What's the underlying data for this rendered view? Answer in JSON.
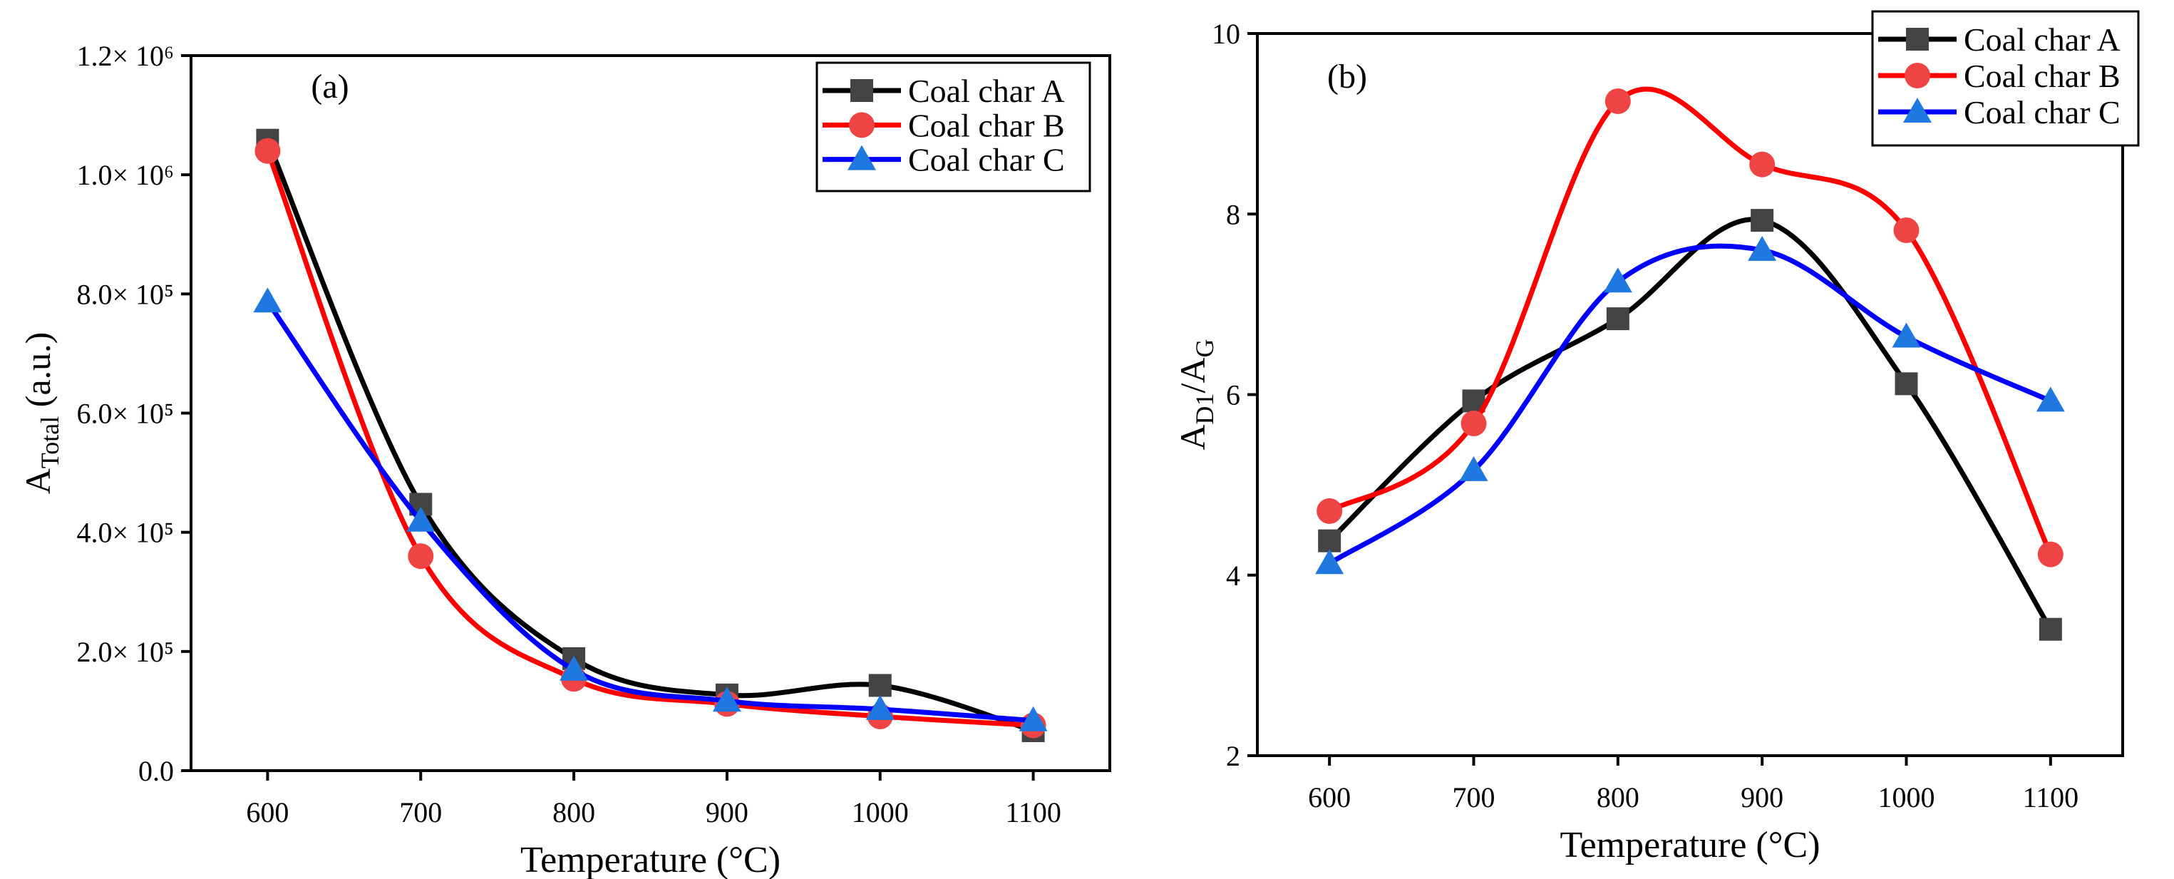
{
  "chart_data": [
    {
      "type": "line",
      "panel_label": "(a)",
      "title": "",
      "xlabel": "Temperature (°C)",
      "ylabel_main": "A",
      "ylabel_sub": "Total",
      "ylabel_rest": " (a.u.)",
      "x": [
        600,
        700,
        800,
        900,
        1000,
        1100
      ],
      "xlim": [
        550,
        1150
      ],
      "ylim": [
        0,
        1200000
      ],
      "xticks": [
        600,
        700,
        800,
        900,
        1000,
        1100
      ],
      "xtick_labels": [
        "600",
        "700",
        "800",
        "900",
        "1000",
        "1100"
      ],
      "yticks": [
        0,
        200000,
        400000,
        600000,
        800000,
        1000000,
        1200000
      ],
      "ytick_labels": [
        "0.0",
        "2.0× 10⁵",
        "4.0× 10⁵",
        "6.0× 10⁵",
        "8.0× 10⁵",
        "1.0× 10⁶",
        "1.2× 10⁶"
      ],
      "grid": false,
      "legend_position": "top-right",
      "series": [
        {
          "name": "Coal char A",
          "marker": "square",
          "line_color": "#000000",
          "marker_color": "#444444",
          "values": [
            1058000,
            447000,
            188000,
            127000,
            143000,
            67000
          ]
        },
        {
          "name": "Coal char B",
          "marker": "circle",
          "line_color": "#ff0000",
          "marker_color": "#ee4444",
          "values": [
            1040000,
            360000,
            154000,
            112000,
            91000,
            76000
          ]
        },
        {
          "name": "Coal char C",
          "marker": "triangle",
          "line_color": "#0000ff",
          "marker_color": "#1f77e0",
          "values": [
            787000,
            419000,
            169000,
            117000,
            103000,
            84000
          ]
        }
      ]
    },
    {
      "type": "line",
      "panel_label": "(b)",
      "title": "",
      "xlabel": "Temperature (°C)",
      "ylabel_main": "A",
      "ylabel_sub": "D1",
      "ylabel_rest": "/A",
      "ylabel_sub2": "G",
      "x": [
        600,
        700,
        800,
        900,
        1000,
        1100
      ],
      "xlim": [
        550,
        1150
      ],
      "ylim": [
        2,
        10
      ],
      "xticks": [
        600,
        700,
        800,
        900,
        1000,
        1100
      ],
      "xtick_labels": [
        "600",
        "700",
        "800",
        "900",
        "1000",
        "1100"
      ],
      "yticks": [
        2,
        4,
        6,
        8,
        10
      ],
      "ytick_labels": [
        "2",
        "4",
        "6",
        "8",
        "10"
      ],
      "grid": false,
      "legend_position": "top-right",
      "series": [
        {
          "name": "Coal char A",
          "marker": "square",
          "line_color": "#000000",
          "marker_color": "#444444",
          "values": [
            4.38,
            5.93,
            6.84,
            7.93,
            6.12,
            3.4
          ]
        },
        {
          "name": "Coal char B",
          "marker": "circle",
          "line_color": "#ff0000",
          "marker_color": "#ee4444",
          "values": [
            4.71,
            5.68,
            9.25,
            8.55,
            7.82,
            4.23
          ]
        },
        {
          "name": "Coal char C",
          "marker": "triangle",
          "line_color": "#0000ff",
          "marker_color": "#1f77e0",
          "values": [
            4.13,
            5.16,
            7.25,
            7.6,
            6.64,
            5.93
          ]
        }
      ]
    }
  ]
}
